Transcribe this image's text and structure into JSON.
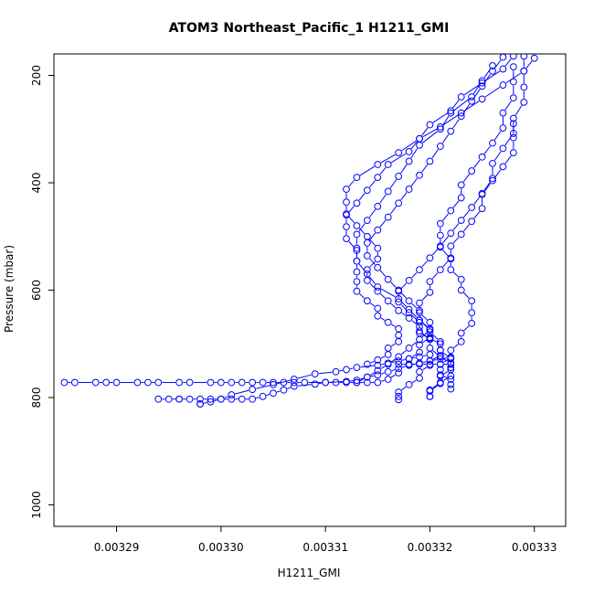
{
  "chart_data": {
    "type": "scatter",
    "title": "ATOM3 Northeast_Pacific_1 H1211_GMI",
    "xlabel": "H1211_GMI",
    "ylabel": "Pressure (mbar)",
    "xlim": [
      0.003284,
      0.003333
    ],
    "ylim": [
      1040,
      160
    ],
    "y_reversed": true,
    "grid": false,
    "x_ticks": [
      0.00329,
      0.0033,
      0.00331,
      0.00332,
      0.00333
    ],
    "x_tick_labels": [
      "0.00329",
      "0.00330",
      "0.00331",
      "0.00332",
      "0.00333"
    ],
    "y_ticks": [
      200,
      400,
      600,
      800,
      1000
    ],
    "y_tick_labels": [
      "200",
      "400",
      "600",
      "800",
      "1000"
    ],
    "marker": "open-circle",
    "color": "#0000ff",
    "series": [
      {
        "points": [
          [
            0.003285,
            772
          ],
          [
            0.003286,
            772
          ],
          [
            0.003288,
            772
          ],
          [
            0.003289,
            772
          ],
          [
            0.00329,
            772
          ],
          [
            0.003292,
            772
          ],
          [
            0.003293,
            772
          ],
          [
            0.003294,
            772
          ],
          [
            0.003296,
            772
          ],
          [
            0.003297,
            772
          ],
          [
            0.003299,
            772
          ],
          [
            0.0033,
            772
          ],
          [
            0.003301,
            772
          ],
          [
            0.003302,
            772
          ],
          [
            0.003303,
            772
          ],
          [
            0.003304,
            772
          ],
          [
            0.003305,
            772
          ],
          [
            0.003306,
            772
          ],
          [
            0.003307,
            772
          ],
          [
            0.003308,
            772
          ],
          [
            0.00331,
            772
          ],
          [
            0.003311,
            772
          ],
          [
            0.003312,
            772
          ],
          [
            0.003313,
            772
          ],
          [
            0.003314,
            772
          ],
          [
            0.003315,
            772
          ],
          [
            0.003316,
            766
          ],
          [
            0.003317,
            754
          ],
          [
            0.003317,
            738
          ],
          [
            0.003318,
            738
          ],
          [
            0.003319,
            738
          ],
          [
            0.00332,
            738
          ],
          [
            0.003321,
            738
          ],
          [
            0.003322,
            738
          ]
        ]
      },
      {
        "points": [
          [
            0.003294,
            803
          ],
          [
            0.003295,
            803
          ],
          [
            0.003296,
            803
          ],
          [
            0.003296,
            803
          ],
          [
            0.003297,
            803
          ],
          [
            0.003298,
            803
          ],
          [
            0.003299,
            803
          ],
          [
            0.0033,
            803
          ],
          [
            0.003301,
            803
          ],
          [
            0.003302,
            803
          ],
          [
            0.003303,
            803
          ],
          [
            0.003304,
            798
          ],
          [
            0.003305,
            792
          ],
          [
            0.003306,
            786
          ],
          [
            0.003307,
            779
          ],
          [
            0.003309,
            775
          ],
          [
            0.00331,
            772
          ],
          [
            0.003312,
            770
          ],
          [
            0.003313,
            768
          ],
          [
            0.003314,
            762
          ],
          [
            0.003315,
            758
          ],
          [
            0.003316,
            752
          ],
          [
            0.003317,
            746
          ],
          [
            0.003318,
            740
          ],
          [
            0.003319,
            736
          ],
          [
            0.00332,
            732
          ],
          [
            0.003321,
            728
          ],
          [
            0.003322,
            725
          ]
        ]
      },
      {
        "points": [
          [
            0.003298,
            812
          ],
          [
            0.003298,
            812
          ],
          [
            0.003299,
            808
          ],
          [
            0.0033,
            803
          ],
          [
            0.003301,
            795
          ],
          [
            0.003303,
            785
          ],
          [
            0.003305,
            776
          ],
          [
            0.003307,
            766
          ],
          [
            0.003309,
            756
          ],
          [
            0.003311,
            752
          ],
          [
            0.003312,
            748
          ],
          [
            0.003313,
            744
          ],
          [
            0.003315,
            740
          ],
          [
            0.003316,
            736
          ],
          [
            0.003317,
            732
          ],
          [
            0.003318,
            728
          ],
          [
            0.003319,
            724
          ],
          [
            0.00332,
            720
          ]
        ]
      },
      {
        "points": [
          [
            0.003317,
            804
          ],
          [
            0.003317,
            798
          ],
          [
            0.003317,
            790
          ],
          [
            0.003318,
            776
          ],
          [
            0.003319,
            764
          ],
          [
            0.003319,
            752
          ],
          [
            0.00332,
            740
          ],
          [
            0.00332,
            732
          ],
          [
            0.003321,
            722
          ],
          [
            0.003321,
            712
          ],
          [
            0.003321,
            700
          ],
          [
            0.00332,
            690
          ],
          [
            0.003319,
            680
          ],
          [
            0.003319,
            668
          ],
          [
            0.003318,
            652
          ],
          [
            0.003317,
            638
          ],
          [
            0.003316,
            620
          ],
          [
            0.003315,
            602
          ],
          [
            0.003314,
            582
          ],
          [
            0.003314,
            562
          ],
          [
            0.003315,
            542
          ],
          [
            0.003315,
            522
          ],
          [
            0.003314,
            500
          ],
          [
            0.003313,
            480
          ],
          [
            0.003312,
            458
          ],
          [
            0.003312,
            436
          ],
          [
            0.003312,
            412
          ],
          [
            0.003313,
            390
          ],
          [
            0.003315,
            366
          ],
          [
            0.003317,
            344
          ],
          [
            0.003319,
            318
          ],
          [
            0.003321,
            296
          ],
          [
            0.003323,
            270
          ],
          [
            0.003325,
            244
          ],
          [
            0.003327,
            218
          ],
          [
            0.003329,
            192
          ],
          [
            0.00333,
            168
          ]
        ]
      },
      {
        "points": [
          [
            0.00332,
            798
          ],
          [
            0.00332,
            788
          ],
          [
            0.003321,
            774
          ],
          [
            0.003321,
            760
          ],
          [
            0.003322,
            748
          ],
          [
            0.003322,
            736
          ],
          [
            0.003321,
            724
          ],
          [
            0.00332,
            708
          ],
          [
            0.00332,
            692
          ],
          [
            0.003319,
            676
          ],
          [
            0.003319,
            660
          ],
          [
            0.003318,
            642
          ],
          [
            0.003317,
            622
          ],
          [
            0.003317,
            602
          ],
          [
            0.003318,
            582
          ],
          [
            0.003319,
            562
          ],
          [
            0.00332,
            540
          ],
          [
            0.003321,
            518
          ],
          [
            0.003322,
            494
          ],
          [
            0.003323,
            470
          ],
          [
            0.003324,
            446
          ],
          [
            0.003325,
            420
          ],
          [
            0.003326,
            392
          ],
          [
            0.003326,
            364
          ],
          [
            0.003327,
            336
          ],
          [
            0.003328,
            308
          ],
          [
            0.003328,
            280
          ],
          [
            0.003329,
            250
          ],
          [
            0.003329,
            222
          ],
          [
            0.003329,
            192
          ],
          [
            0.003329,
            164
          ]
        ]
      },
      {
        "points": [
          [
            0.00332,
            798
          ],
          [
            0.00332,
            786
          ],
          [
            0.003321,
            772
          ],
          [
            0.003322,
            760
          ],
          [
            0.003322,
            744
          ],
          [
            0.003322,
            728
          ],
          [
            0.003321,
            712
          ],
          [
            0.003321,
            696
          ],
          [
            0.00332,
            678
          ],
          [
            0.00332,
            660
          ],
          [
            0.003319,
            642
          ],
          [
            0.003319,
            624
          ],
          [
            0.00332,
            604
          ],
          [
            0.00332,
            584
          ],
          [
            0.003321,
            562
          ],
          [
            0.003322,
            540
          ],
          [
            0.003322,
            518
          ],
          [
            0.003323,
            496
          ],
          [
            0.003324,
            472
          ],
          [
            0.003325,
            448
          ],
          [
            0.003325,
            422
          ],
          [
            0.003326,
            396
          ],
          [
            0.003327,
            370
          ],
          [
            0.003328,
            344
          ],
          [
            0.003328,
            316
          ],
          [
            0.003328,
            290
          ]
        ]
      },
      {
        "points": [
          [
            0.003322,
            784
          ],
          [
            0.003322,
            776
          ],
          [
            0.003322,
            766
          ],
          [
            0.003321,
            758
          ],
          [
            0.003321,
            748
          ],
          [
            0.003321,
            738
          ],
          [
            0.003322,
            726
          ],
          [
            0.003322,
            712
          ],
          [
            0.003323,
            696
          ],
          [
            0.003323,
            680
          ],
          [
            0.003324,
            662
          ],
          [
            0.003324,
            642
          ],
          [
            0.003324,
            620
          ],
          [
            0.003323,
            600
          ],
          [
            0.003323,
            580
          ],
          [
            0.003322,
            562
          ],
          [
            0.003322,
            542
          ],
          [
            0.003321,
            520
          ],
          [
            0.003321,
            498
          ],
          [
            0.003321,
            476
          ],
          [
            0.003322,
            452
          ],
          [
            0.003323,
            428
          ],
          [
            0.003323,
            404
          ],
          [
            0.003324,
            378
          ],
          [
            0.003325,
            352
          ],
          [
            0.003326,
            326
          ],
          [
            0.003327,
            298
          ],
          [
            0.003327,
            270
          ],
          [
            0.003328,
            242
          ],
          [
            0.003328,
            212
          ],
          [
            0.003328,
            184
          ]
        ]
      },
      {
        "points": [
          [
            0.003314,
            738
          ],
          [
            0.003315,
            730
          ],
          [
            0.003316,
            720
          ],
          [
            0.003316,
            708
          ],
          [
            0.003317,
            696
          ],
          [
            0.003317,
            684
          ],
          [
            0.003317,
            672
          ],
          [
            0.003316,
            660
          ],
          [
            0.003315,
            648
          ],
          [
            0.003315,
            634
          ],
          [
            0.003314,
            620
          ],
          [
            0.003313,
            602
          ],
          [
            0.003313,
            584
          ],
          [
            0.003313,
            566
          ],
          [
            0.003313,
            546
          ],
          [
            0.003313,
            526
          ],
          [
            0.003312,
            504
          ],
          [
            0.003312,
            482
          ],
          [
            0.003312,
            460
          ],
          [
            0.003313,
            438
          ],
          [
            0.003314,
            414
          ],
          [
            0.003315,
            390
          ],
          [
            0.003316,
            366
          ],
          [
            0.003318,
            342
          ],
          [
            0.003319,
            318
          ],
          [
            0.00332,
            292
          ],
          [
            0.003322,
            266
          ],
          [
            0.003323,
            240
          ],
          [
            0.003325,
            214
          ],
          [
            0.003327,
            188
          ],
          [
            0.003328,
            164
          ]
        ]
      },
      {
        "points": [
          [
            0.003318,
            738
          ],
          [
            0.003318,
            728
          ],
          [
            0.003319,
            716
          ],
          [
            0.003319,
            702
          ],
          [
            0.00332,
            688
          ],
          [
            0.00332,
            672
          ],
          [
            0.003319,
            656
          ],
          [
            0.003319,
            638
          ],
          [
            0.003318,
            620
          ],
          [
            0.003317,
            600
          ],
          [
            0.003316,
            580
          ],
          [
            0.003315,
            558
          ],
          [
            0.003314,
            536
          ],
          [
            0.003314,
            512
          ],
          [
            0.003315,
            488
          ],
          [
            0.003316,
            464
          ],
          [
            0.003317,
            438
          ],
          [
            0.003318,
            412
          ],
          [
            0.003319,
            386
          ],
          [
            0.00332,
            360
          ],
          [
            0.003321,
            332
          ],
          [
            0.003322,
            304
          ],
          [
            0.003323,
            276
          ],
          [
            0.003324,
            248
          ],
          [
            0.003325,
            220
          ],
          [
            0.003326,
            192
          ],
          [
            0.003327,
            166
          ]
        ]
      },
      {
        "points": [
          [
            0.003313,
            772
          ],
          [
            0.003314,
            762
          ],
          [
            0.003315,
            750
          ],
          [
            0.003316,
            738
          ],
          [
            0.003317,
            724
          ],
          [
            0.003318,
            708
          ],
          [
            0.003319,
            692
          ],
          [
            0.00332,
            674
          ],
          [
            0.003319,
            656
          ],
          [
            0.003318,
            636
          ],
          [
            0.003317,
            616
          ],
          [
            0.003315,
            594
          ],
          [
            0.003314,
            570
          ],
          [
            0.003313,
            546
          ],
          [
            0.003313,
            522
          ],
          [
            0.003313,
            496
          ],
          [
            0.003314,
            470
          ],
          [
            0.003315,
            444
          ],
          [
            0.003316,
            416
          ],
          [
            0.003317,
            388
          ],
          [
            0.003318,
            360
          ],
          [
            0.003319,
            330
          ],
          [
            0.003321,
            300
          ],
          [
            0.003322,
            270
          ],
          [
            0.003324,
            240
          ],
          [
            0.003325,
            210
          ],
          [
            0.003326,
            182
          ]
        ]
      }
    ]
  }
}
